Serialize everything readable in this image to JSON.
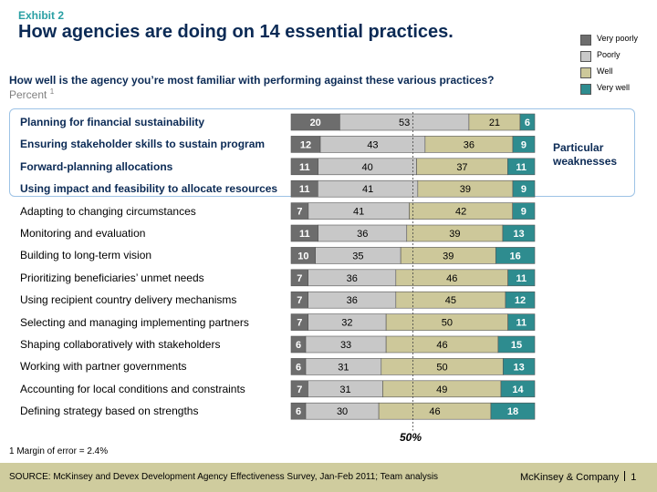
{
  "header": {
    "exhibit": "Exhibit 2",
    "title": "How agencies are doing on 14 essential practices.",
    "question": "How well is the agency you’re most familiar with performing against these various practices?",
    "unit": "Percent",
    "unit_footnote_ref": "1"
  },
  "chart_data": {
    "type": "bar",
    "orientation": "horizontal-stacked",
    "categories": [
      "Planning for financial sustainability",
      "Ensuring stakeholder skills to sustain program",
      "Forward-planning allocations",
      "Using impact and feasibility to allocate resources",
      "Adapting to changing circumstances",
      "Monitoring and evaluation",
      "Building to long-term vision",
      "Prioritizing beneficiaries’ unmet needs",
      "Using recipient country delivery mechanisms",
      "Selecting and managing implementing partners",
      "Shaping collaboratively with stakeholders",
      "Working with partner governments",
      "Accounting for local conditions and constraints",
      "Defining strategy based on strengths"
    ],
    "series": [
      {
        "name": "Very poorly",
        "color": "#6d6d6d",
        "values": [
          20,
          12,
          11,
          11,
          7,
          11,
          10,
          7,
          7,
          7,
          6,
          6,
          7,
          6
        ]
      },
      {
        "name": "Poorly",
        "color": "#c8c8c8",
        "values": [
          53,
          43,
          40,
          41,
          41,
          36,
          35,
          36,
          36,
          32,
          33,
          31,
          31,
          30
        ]
      },
      {
        "name": "Well",
        "color": "#cdc89a",
        "values": [
          21,
          36,
          37,
          39,
          42,
          39,
          39,
          46,
          45,
          50,
          46,
          50,
          49,
          46
        ]
      },
      {
        "name": "Very well",
        "color": "#2e8c8f",
        "values": [
          6,
          9,
          11,
          9,
          9,
          13,
          16,
          11,
          12,
          11,
          15,
          13,
          14,
          18
        ]
      }
    ],
    "highlighted_count": 4,
    "highlight_annotation": "Particular weaknesses",
    "reference_line_label": "50%",
    "reference_line_value": 50
  },
  "footnote": "1 Margin of error = 2.4%",
  "footer": {
    "source": "SOURCE: McKinsey and Devex Development Agency Effectiveness Survey, Jan-Feb 2011; Team analysis",
    "brand": "McKinsey & Company",
    "page": "1"
  }
}
